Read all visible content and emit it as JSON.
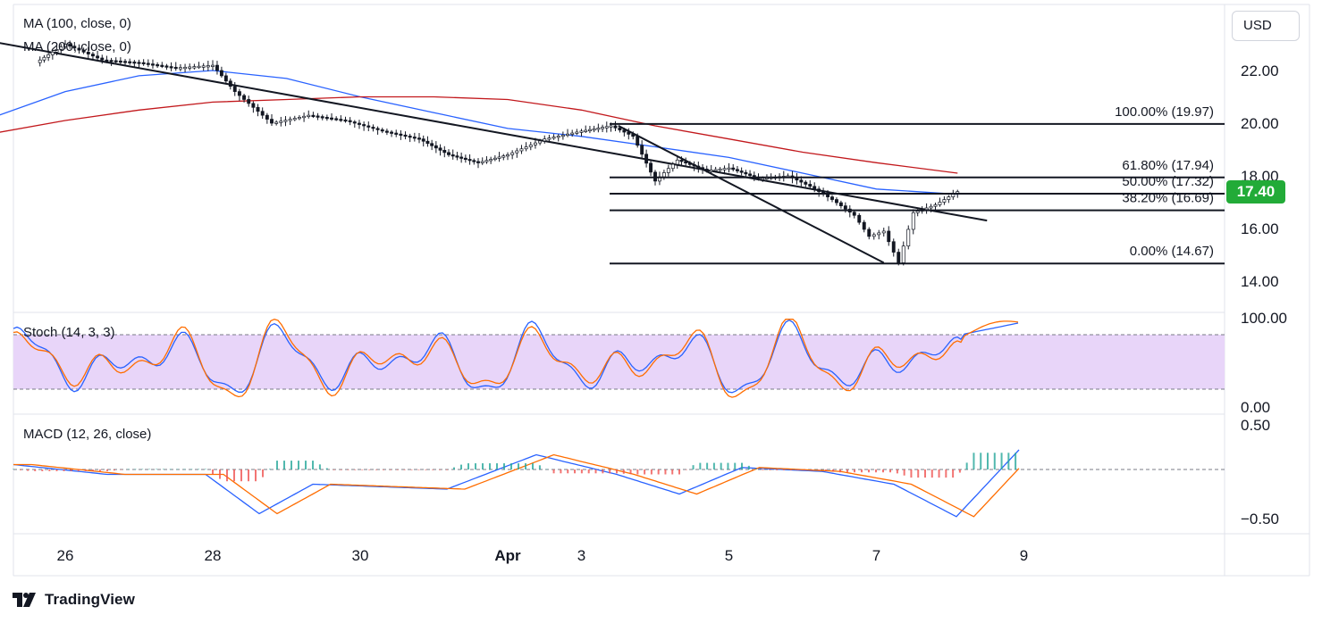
{
  "header": {
    "currency": "USD"
  },
  "price_panel": {
    "indicators": [
      "MA (100, close, 0)",
      "MA (200, close, 0)"
    ],
    "price_ticks": [
      22.0,
      20.0,
      18.0,
      16.0,
      14.0
    ],
    "current_price": "17.40",
    "fib_levels": [
      {
        "label": "100.00% (19.97)",
        "value": 19.97
      },
      {
        "label": "61.80% (17.94)",
        "value": 17.94
      },
      {
        "label": "50.00% (17.32)",
        "value": 17.32
      },
      {
        "label": "38.20% (16.69)",
        "value": 16.69
      },
      {
        "label": "0.00% (14.67)",
        "value": 14.67
      }
    ]
  },
  "stoch_panel": {
    "label": "Stoch (14, 3, 3)",
    "ticks": [
      "100.00",
      "0.00"
    ],
    "upper": 80,
    "lower": 20
  },
  "macd_panel": {
    "label": "MACD (12, 26, close)",
    "ticks": [
      "0.50",
      "−0.50"
    ]
  },
  "time_axis": [
    "26",
    "28",
    "30",
    "Apr",
    "3",
    "5",
    "7",
    "9"
  ],
  "brand": "TradingView",
  "chart_data": {
    "type": "line",
    "x_labels": [
      "26",
      "28",
      "30",
      "Apr",
      "3",
      "5",
      "7",
      "9"
    ],
    "series": [
      {
        "name": "",
        "x": [
          25.6,
          26.0,
          26.5,
          27.0,
          27.5,
          28.0,
          28.3,
          28.8,
          29.3,
          29.8,
          30.3,
          30.8,
          31.2,
          31.6,
          32.0,
          32.5,
          33.0,
          33.4,
          33.7,
          34.0,
          34.3,
          34.7,
          35.0,
          35.4,
          35.8,
          36.1,
          36.4,
          36.7,
          36.9,
          37.1,
          37.3,
          37.5,
          37.8,
          38.1
        ],
        "values": [
          22.3,
          23.0,
          22.4,
          22.3,
          22.1,
          22.2,
          21.2,
          20.0,
          20.3,
          20.1,
          19.7,
          19.4,
          18.8,
          18.5,
          18.8,
          19.4,
          19.7,
          19.9,
          19.5,
          17.8,
          18.6,
          18.2,
          18.3,
          17.9,
          18.0,
          17.6,
          17.1,
          16.5,
          15.7,
          15.9,
          14.7,
          16.6,
          16.9,
          17.4
        ]
      },
      {
        "name": "MA (100, close, 0)",
        "x": [
          25.0,
          26.0,
          27.0,
          28.0,
          29.0,
          30.0,
          31.0,
          32.0,
          33.0,
          34.0,
          35.0,
          36.0,
          37.0,
          38.1
        ],
        "values": [
          20.2,
          21.2,
          21.8,
          22.0,
          21.7,
          21.0,
          20.4,
          19.8,
          19.5,
          19.1,
          18.7,
          18.1,
          17.5,
          17.3
        ]
      },
      {
        "name": "MA (200, close, 0)",
        "x": [
          25.0,
          26.0,
          27.0,
          28.0,
          29.0,
          30.0,
          31.0,
          32.0,
          33.0,
          34.0,
          35.0,
          36.0,
          37.0,
          38.1
        ],
        "values": [
          19.6,
          20.1,
          20.5,
          20.8,
          20.9,
          21.0,
          21.0,
          20.9,
          20.5,
          19.9,
          19.4,
          18.9,
          18.5,
          18.1
        ]
      }
    ],
    "trendlines": [
      {
        "x": [
          25.0,
          38.5
        ],
        "values": [
          23.1,
          16.3
        ]
      },
      {
        "x": [
          33.5,
          37.1
        ],
        "values": [
          19.9,
          14.7
        ]
      }
    ],
    "ylim": [
      13.0,
      23.5
    ],
    "grid": false,
    "legend_position": "top-left"
  }
}
